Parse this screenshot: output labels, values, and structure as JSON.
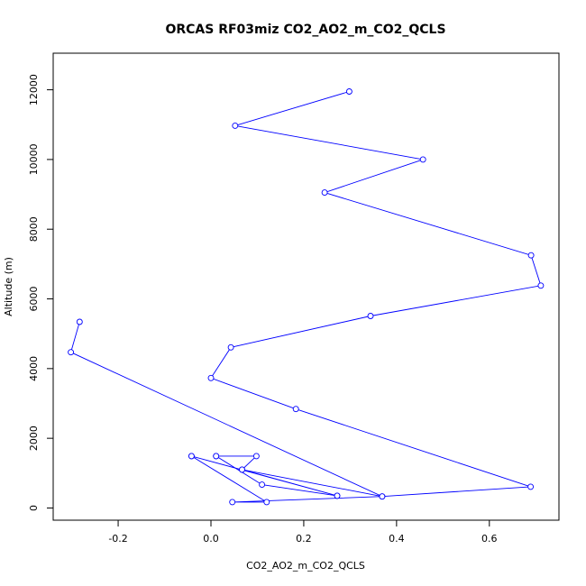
{
  "chart_data": {
    "type": "line",
    "title": "ORCAS RF03miz CO2_AO2_m_CO2_QCLS",
    "xlabel": "CO2_AO2_m_CO2_QCLS",
    "ylabel": "Altitude (m)",
    "xlim": [
      -0.34,
      0.75
    ],
    "ylim": [
      -350,
      13050
    ],
    "xticks": [
      -0.2,
      0.0,
      0.2,
      0.4,
      0.6
    ],
    "xtick_labels": [
      "-0.2",
      "0.0",
      "0.2",
      "0.4",
      "0.6"
    ],
    "yticks": [
      0,
      2000,
      4000,
      6000,
      8000,
      10000,
      12000
    ],
    "ytick_labels": [
      "0",
      "2000",
      "4000",
      "6000",
      "8000",
      "10000",
      "12000"
    ],
    "grid": false,
    "marker": "open-circle",
    "series_color": "#0000ff",
    "series": [
      {
        "x": [
          0.298,
          0.052,
          0.457,
          0.245,
          0.69,
          0.711,
          0.344,
          0.043,
          0.0,
          0.183,
          0.689,
          0.369,
          -0.302,
          -0.283
        ],
        "y": [
          11950,
          10970,
          10000,
          9050,
          7250,
          6380,
          5510,
          4610,
          3730,
          2840,
          610,
          330,
          4470,
          5340
        ]
      },
      {
        "x": [
          -0.042,
          0.272,
          0.067,
          0.098,
          0.011
        ],
        "y": [
          1490,
          350,
          1100,
          1490,
          1490
        ]
      },
      {
        "x": [
          0.011,
          0.11,
          0.272
        ],
        "y": [
          1490,
          670,
          350
        ]
      },
      {
        "x": [
          -0.042,
          0.12,
          0.046,
          0.369,
          0.067
        ],
        "y": [
          1490,
          170,
          170,
          330,
          1100
        ]
      }
    ]
  }
}
